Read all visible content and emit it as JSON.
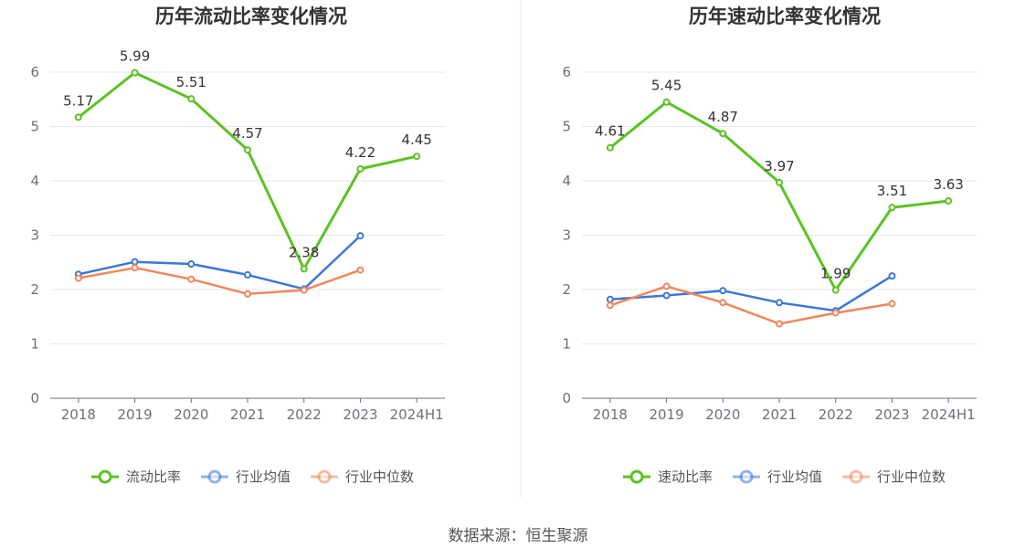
{
  "source_label": "数据来源：恒生聚源",
  "chart_data": [
    {
      "type": "line",
      "title": "历年流动比率变化情况",
      "categories": [
        "2018",
        "2019",
        "2020",
        "2021",
        "2022",
        "2023",
        "2024H1"
      ],
      "ylim": [
        0,
        6
      ],
      "yticks": [
        0,
        1,
        2,
        3,
        4,
        5,
        6
      ],
      "grid": true,
      "legend_position": "bottom",
      "series": [
        {
          "name": "流动比率",
          "color": "#5cc224",
          "values": [
            5.17,
            5.99,
            5.51,
            4.57,
            2.38,
            4.22,
            4.45
          ],
          "labels": [
            "5.17",
            "5.99",
            "5.51",
            "4.57",
            "2.38",
            "4.22",
            "4.45"
          ]
        },
        {
          "name": "行业均值",
          "color": "#3b78d8",
          "values": [
            2.28,
            2.51,
            2.47,
            2.27,
            2.01,
            2.99,
            null
          ]
        },
        {
          "name": "行业中位数",
          "color": "#f0875a",
          "values": [
            2.21,
            2.4,
            2.19,
            1.92,
            1.99,
            2.36,
            null
          ]
        }
      ]
    },
    {
      "type": "line",
      "title": "历年速动比率变化情况",
      "categories": [
        "2018",
        "2019",
        "2020",
        "2021",
        "2022",
        "2023",
        "2024H1"
      ],
      "ylim": [
        0,
        6
      ],
      "yticks": [
        0,
        1,
        2,
        3,
        4,
        5,
        6
      ],
      "grid": true,
      "legend_position": "bottom",
      "series": [
        {
          "name": "速动比率",
          "color": "#5cc224",
          "values": [
            4.61,
            5.45,
            4.87,
            3.97,
            1.99,
            3.51,
            3.63
          ],
          "labels": [
            "4.61",
            "5.45",
            "4.87",
            "3.97",
            "1.99",
            "3.51",
            "3.63"
          ]
        },
        {
          "name": "行业均值",
          "color": "#3b78d8",
          "values": [
            1.82,
            1.89,
            1.98,
            1.76,
            1.61,
            2.25,
            null
          ]
        },
        {
          "name": "行业中位数",
          "color": "#f0875a",
          "values": [
            1.71,
            2.06,
            1.76,
            1.37,
            1.57,
            1.74,
            null
          ]
        }
      ]
    }
  ]
}
